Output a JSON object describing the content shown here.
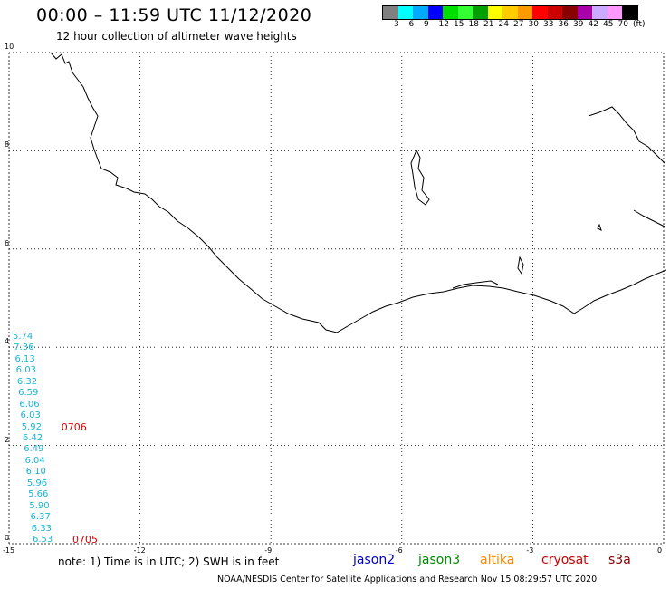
{
  "title": "00:00 – 11:59 UTC 11/12/2020",
  "subtitle": "12 hour collection of altimeter wave heights",
  "colorbar": {
    "colors": [
      "#808080",
      "#00ffff",
      "#00aaff",
      "#0000ff",
      "#00dd00",
      "#33ff33",
      "#00a000",
      "#ffff00",
      "#ffcc00",
      "#ff9900",
      "#ff0000",
      "#cc0000",
      "#880000",
      "#aa00aa",
      "#ccaaff",
      "#ff99ff",
      "#000000"
    ],
    "labels": [
      "3",
      "6",
      "9",
      "12",
      "15",
      "18",
      "21",
      "24",
      "27",
      "30",
      "33",
      "36",
      "39",
      "42",
      "45",
      "70",
      "(ft)"
    ]
  },
  "axes": {
    "x_ticks": [
      "-15",
      "-12",
      "-9",
      "-6",
      "-3",
      "0"
    ],
    "y_ticks": [
      "0",
      "2",
      "4",
      "6",
      "8",
      "10"
    ]
  },
  "track_values": [
    "5.74",
    "7.36",
    "6.13",
    "6.03",
    "6.32",
    "6.59",
    "6.06",
    "6.03",
    "5.92",
    "6.42",
    "6.49",
    "6.04",
    "6.10",
    "5.96",
    "5.66",
    "5.90",
    "6.37",
    "6.33",
    "6.53"
  ],
  "track_times": [
    {
      "label": "0706",
      "index": 8
    },
    {
      "label": "0705",
      "index": 18
    }
  ],
  "note": "note: 1) Time is in UTC; 2) SWH is in feet",
  "legend": [
    {
      "name": "jason2",
      "color": "#0000cc"
    },
    {
      "name": "jason3",
      "color": "#008800"
    },
    {
      "name": "altika",
      "color": "#ff8800"
    },
    {
      "name": "cryosat",
      "color": "#cc0000"
    },
    {
      "name": "s3a",
      "color": "#880000"
    }
  ],
  "credit": "NOAA/NESDIS Center for Satellite Applications and Research    Nov 15 08:29:57 UTC 2020"
}
